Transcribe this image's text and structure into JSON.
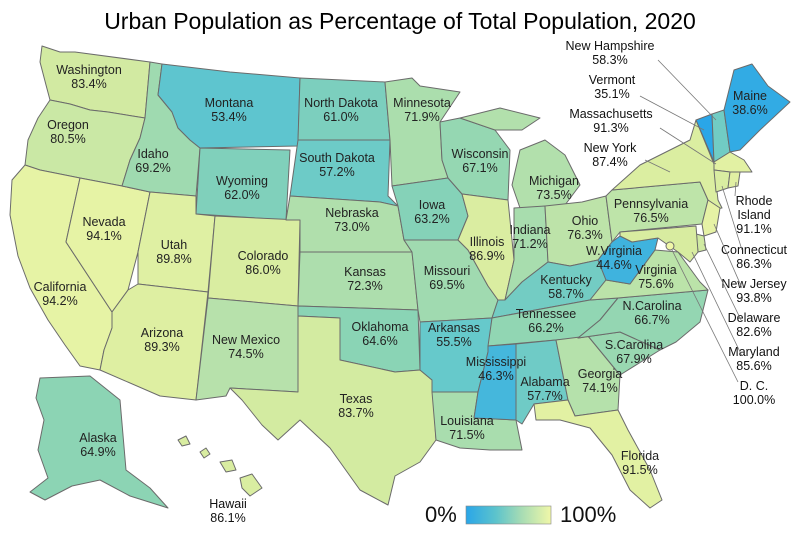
{
  "title": "Urban Population as Percentage of Total Population, 2020",
  "legend": {
    "min_label": "0%",
    "max_label": "100%",
    "color_low": "#2aa6e8",
    "color_high": "#f0f7a8"
  },
  "states": [
    {
      "id": "washington",
      "name": "Washington",
      "value": "83.4%",
      "pct": 83.4
    },
    {
      "id": "oregon",
      "name": "Oregon",
      "value": "80.5%",
      "pct": 80.5
    },
    {
      "id": "california",
      "name": "California",
      "value": "94.2%",
      "pct": 94.2
    },
    {
      "id": "nevada",
      "name": "Nevada",
      "value": "94.1%",
      "pct": 94.1
    },
    {
      "id": "idaho",
      "name": "Idaho",
      "value": "69.2%",
      "pct": 69.2
    },
    {
      "id": "montana",
      "name": "Montana",
      "value": "53.4%",
      "pct": 53.4
    },
    {
      "id": "wyoming",
      "name": "Wyoming",
      "value": "62.0%",
      "pct": 62.0
    },
    {
      "id": "utah",
      "name": "Utah",
      "value": "89.8%",
      "pct": 89.8
    },
    {
      "id": "arizona",
      "name": "Arizona",
      "value": "89.3%",
      "pct": 89.3
    },
    {
      "id": "colorado",
      "name": "Colorado",
      "value": "86.0%",
      "pct": 86.0
    },
    {
      "id": "new-mexico",
      "name": "New Mexico",
      "value": "74.5%",
      "pct": 74.5
    },
    {
      "id": "north-dakota",
      "name": "North Dakota",
      "value": "61.0%",
      "pct": 61.0
    },
    {
      "id": "south-dakota",
      "name": "South Dakota",
      "value": "57.2%",
      "pct": 57.2
    },
    {
      "id": "nebraska",
      "name": "Nebraska",
      "value": "73.0%",
      "pct": 73.0
    },
    {
      "id": "kansas",
      "name": "Kansas",
      "value": "72.3%",
      "pct": 72.3
    },
    {
      "id": "oklahoma",
      "name": "Oklahoma",
      "value": "64.6%",
      "pct": 64.6
    },
    {
      "id": "texas",
      "name": "Texas",
      "value": "83.7%",
      "pct": 83.7
    },
    {
      "id": "minnesota",
      "name": "Minnesota",
      "value": "71.9%",
      "pct": 71.9
    },
    {
      "id": "iowa",
      "name": "Iowa",
      "value": "63.2%",
      "pct": 63.2
    },
    {
      "id": "missouri",
      "name": "Missouri",
      "value": "69.5%",
      "pct": 69.5
    },
    {
      "id": "arkansas",
      "name": "Arkansas",
      "value": "55.5%",
      "pct": 55.5
    },
    {
      "id": "louisiana",
      "name": "Louisiana",
      "value": "71.5%",
      "pct": 71.5
    },
    {
      "id": "wisconsin",
      "name": "Wisconsin",
      "value": "67.1%",
      "pct": 67.1
    },
    {
      "id": "illinois",
      "name": "Illinois",
      "value": "86.9%",
      "pct": 86.9
    },
    {
      "id": "michigan",
      "name": "Michigan",
      "value": "73.5%",
      "pct": 73.5
    },
    {
      "id": "indiana",
      "name": "Indiana",
      "value": "71.2%",
      "pct": 71.2
    },
    {
      "id": "ohio",
      "name": "Ohio",
      "value": "76.3%",
      "pct": 76.3
    },
    {
      "id": "kentucky",
      "name": "Kentucky",
      "value": "58.7%",
      "pct": 58.7
    },
    {
      "id": "tennessee",
      "name": "Tennessee",
      "value": "66.2%",
      "pct": 66.2
    },
    {
      "id": "mississippi",
      "name": "Mississippi",
      "value": "46.3%",
      "pct": 46.3
    },
    {
      "id": "alabama",
      "name": "Alabama",
      "value": "57.7%",
      "pct": 57.7
    },
    {
      "id": "georgia",
      "name": "Georgia",
      "value": "74.1%",
      "pct": 74.1
    },
    {
      "id": "florida",
      "name": "Florida",
      "value": "91.5%",
      "pct": 91.5
    },
    {
      "id": "south-carolina",
      "name": "S.Carolina",
      "value": "67.9%",
      "pct": 67.9
    },
    {
      "id": "north-carolina",
      "name": "N.Carolina",
      "value": "66.7%",
      "pct": 66.7
    },
    {
      "id": "virginia",
      "name": "Virginia",
      "value": "75.6%",
      "pct": 75.6
    },
    {
      "id": "west-virginia",
      "name": "W.Virginia",
      "value": "44.6%",
      "pct": 44.6
    },
    {
      "id": "pennsylvania",
      "name": "Pennsylvania",
      "value": "76.5%",
      "pct": 76.5
    },
    {
      "id": "new-york",
      "name": "New York",
      "value": "87.4%",
      "pct": 87.4
    },
    {
      "id": "vermont",
      "name": "Vermont",
      "value": "35.1%",
      "pct": 35.1
    },
    {
      "id": "new-hampshire",
      "name": "New Hampshire",
      "value": "58.3%",
      "pct": 58.3
    },
    {
      "id": "maine",
      "name": "Maine",
      "value": "38.6%",
      "pct": 38.6
    },
    {
      "id": "massachusetts",
      "name": "Massachusetts",
      "value": "91.3%",
      "pct": 91.3
    },
    {
      "id": "rhode-island",
      "name": "Rhode Island",
      "value": "91.1%",
      "pct": 91.1
    },
    {
      "id": "connecticut",
      "name": "Connecticut",
      "value": "86.3%",
      "pct": 86.3
    },
    {
      "id": "new-jersey",
      "name": "New Jersey",
      "value": "93.8%",
      "pct": 93.8
    },
    {
      "id": "delaware",
      "name": "Delaware",
      "value": "82.6%",
      "pct": 82.6
    },
    {
      "id": "maryland",
      "name": "Maryland",
      "value": "85.6%",
      "pct": 85.6
    },
    {
      "id": "dc",
      "name": "D. C.",
      "value": "100.0%",
      "pct": 100.0
    },
    {
      "id": "alaska",
      "name": "Alaska",
      "value": "64.9%",
      "pct": 64.9
    },
    {
      "id": "hawaii",
      "name": "Hawaii",
      "value": "86.1%",
      "pct": 86.1
    }
  ]
}
